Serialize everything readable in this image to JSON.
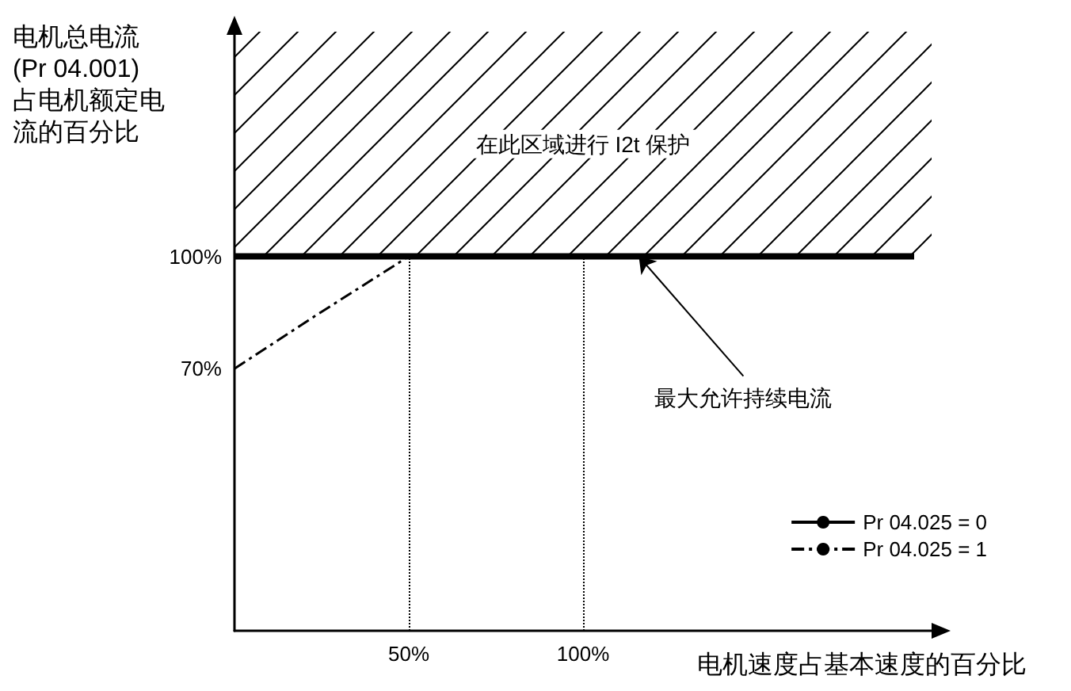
{
  "chart_data": {
    "type": "line",
    "xlabel": "电机速度占基本速度的百分比",
    "ylabel": "电机总电流\n(Pr 04.001)\n占电机额定电流的百分比",
    "xlim": [
      0,
      200
    ],
    "ylim": [
      0,
      160
    ],
    "xticks": [
      {
        "value": 50,
        "label": "50%"
      },
      {
        "value": 100,
        "label": "100%"
      }
    ],
    "yticks": [
      {
        "value": 70,
        "label": "70%"
      },
      {
        "value": 100,
        "label": "100%"
      }
    ],
    "series": [
      {
        "name": "Pr 04.025 = 0",
        "color": "#000000",
        "x": [
          0,
          195
        ],
        "values": [
          100,
          100
        ],
        "line_style": "solid"
      },
      {
        "name": "Pr 04.025 = 1",
        "color": "#000000",
        "x": [
          0,
          23,
          50
        ],
        "values": [
          70,
          84,
          100
        ],
        "line_style": "dashed"
      }
    ],
    "bands": [
      {
        "axis": "y",
        "from": 100,
        "to": 160,
        "label": "在此区域进行 I2t 保护",
        "color": "#000000"
      }
    ],
    "ref_lines": [
      {
        "axis": "x",
        "value": 50,
        "line_style": "dotted"
      },
      {
        "axis": "x",
        "value": 100,
        "line_style": "dotted"
      }
    ],
    "annotations": [
      {
        "text": "最大允许持续电流",
        "x": 116,
        "y": 100
      }
    ],
    "grid": false,
    "legend": "bottom right",
    "marker": "none"
  }
}
